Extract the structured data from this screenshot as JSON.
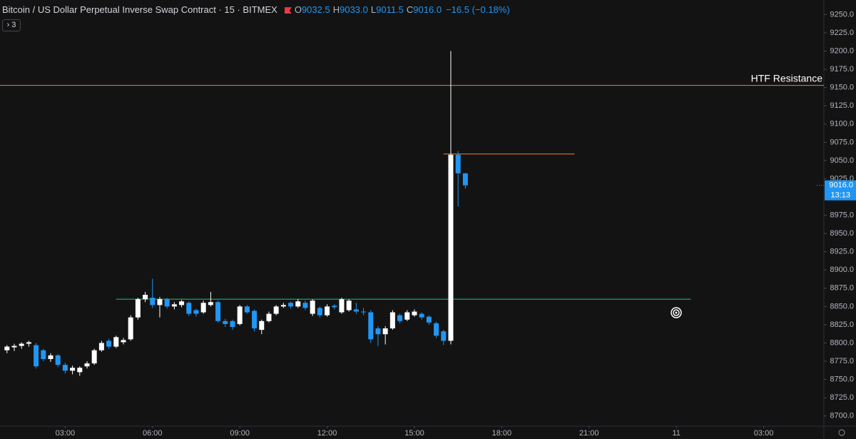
{
  "header": {
    "title": "Bitcoin / US Dollar Perpetual Inverse Swap Contract · 15 · BITMEX",
    "ohlc": [
      {
        "label": "O",
        "value": "9032.5"
      },
      {
        "label": "H",
        "value": "9033.0"
      },
      {
        "label": "L",
        "value": "9011.5"
      },
      {
        "label": "C",
        "value": "9016.0"
      }
    ],
    "change": "−16.5 (−0.18%)",
    "collapse": "› 3"
  },
  "chart_data": {
    "type": "candlestick",
    "x": [
      1,
      1.25,
      1.5,
      1.75,
      2,
      2.25,
      2.5,
      2.75,
      3,
      3.25,
      3.5,
      3.75,
      4,
      4.25,
      4.5,
      4.75,
      5,
      5.25,
      5.5,
      5.75,
      6,
      6.25,
      6.5,
      6.75,
      7,
      7.25,
      7.5,
      7.75,
      8,
      8.25,
      8.5,
      8.75,
      9,
      9.25,
      9.5,
      9.75,
      10,
      10.25,
      10.5,
      10.75,
      11,
      11.25,
      11.5,
      11.75,
      12,
      12.25,
      12.5,
      12.75,
      13,
      13.25,
      13.5,
      13.75,
      14,
      14.25,
      14.5,
      14.75,
      15,
      15.25,
      15.5,
      15.75,
      16,
      16.25,
      16.5,
      16.75
    ],
    "open": [
      8790,
      8794,
      8796,
      8799,
      8797,
      8790,
      8778,
      8783,
      8770,
      8762,
      8760,
      8768,
      8772,
      8790,
      8803,
      8795,
      8801,
      8805,
      8835,
      8860,
      8862,
      8852,
      8860,
      8850,
      8852,
      8855,
      8845,
      8842,
      8852,
      8856,
      8830,
      8830,
      8826,
      8850,
      8844,
      8818,
      8830,
      8840,
      8850,
      8855,
      8850,
      8855,
      8840,
      8848,
      8838,
      8851,
      8842,
      8845,
      8846,
      8843,
      8842,
      8820,
      8812,
      8820,
      8838,
      8832,
      8838,
      8840,
      8836,
      8827,
      8816,
      8803,
      9058,
      9032.5
    ],
    "high": [
      8797,
      8799,
      8801,
      8803,
      8800,
      8792,
      8786,
      8785,
      8773,
      8769,
      8768,
      8775,
      8792,
      8803,
      8806,
      8810,
      8807,
      8838,
      8862,
      8870,
      8888,
      8863,
      8862,
      8856,
      8859,
      8857,
      8847,
      8858,
      8870,
      8858,
      8833,
      8832,
      8852,
      8852,
      8846,
      8832,
      8843,
      8852,
      8855,
      8857,
      8860,
      8858,
      8860,
      8850,
      8853,
      8853,
      8862,
      8860,
      8855,
      8848,
      8845,
      8823,
      8823,
      8845,
      8840,
      8845,
      8846,
      8842,
      8838,
      8829,
      8818,
      9200,
      9063,
      9033
    ],
    "low": [
      8786,
      8789,
      8792,
      8795,
      8765,
      8775,
      8774,
      8767,
      8758,
      8757,
      8755,
      8765,
      8770,
      8788,
      8792,
      8793,
      8798,
      8803,
      8832,
      8856,
      8848,
      8835,
      8847,
      8846,
      8849,
      8837,
      8836,
      8840,
      8850,
      8828,
      8822,
      8818,
      8824,
      8840,
      8816,
      8812,
      8828,
      8838,
      8848,
      8847,
      8848,
      8845,
      8837,
      8835,
      8836,
      8846,
      8840,
      8843,
      8840,
      8838,
      8800,
      8796,
      8798,
      8818,
      8827,
      8830,
      8836,
      8832,
      8825,
      8807,
      8797,
      8798,
      8987,
      9011.5
    ],
    "close": [
      8795,
      8796,
      8799,
      8801,
      8768,
      8778,
      8783,
      8770,
      8762,
      8766,
      8766,
      8772,
      8790,
      8800,
      8795,
      8808,
      8804,
      8835,
      8860,
      8866,
      8852,
      8860,
      8850,
      8853,
      8857,
      8840,
      8840,
      8855,
      8856,
      8830,
      8826,
      8822,
      8850,
      8842,
      8820,
      8830,
      8840,
      8850,
      8852,
      8850,
      8857,
      8848,
      8858,
      8838,
      8850,
      8849,
      8860,
      8858,
      8843,
      8842,
      8805,
      8812,
      8820,
      8842,
      8830,
      8842,
      8843,
      8835,
      8828,
      8810,
      8803,
      9058,
      9032.5,
      9016
    ],
    "up_color": "#ffffff",
    "down_color": "#2196f3",
    "xlim": [
      0.76,
      29.07
    ],
    "ylim": [
      8687,
      9270
    ],
    "xticks": [
      {
        "value": 3,
        "label": "03:00"
      },
      {
        "value": 6,
        "label": "06:00"
      },
      {
        "value": 9,
        "label": "09:00"
      },
      {
        "value": 12,
        "label": "12:00"
      },
      {
        "value": 15,
        "label": "15:00"
      },
      {
        "value": 18,
        "label": "18:00"
      },
      {
        "value": 21,
        "label": "21:00"
      },
      {
        "value": 24,
        "label": "11"
      },
      {
        "value": 27,
        "label": "03:00"
      }
    ],
    "yticks": [
      {
        "value": 8700,
        "label": "8700.0"
      },
      {
        "value": 8725,
        "label": "8725.0"
      },
      {
        "value": 8750,
        "label": "8750.0"
      },
      {
        "value": 8775,
        "label": "8775.0"
      },
      {
        "value": 8800,
        "label": "8800.0"
      },
      {
        "value": 8825,
        "label": "8825.0"
      },
      {
        "value": 8850,
        "label": "8850.0"
      },
      {
        "value": 8875,
        "label": "8875.0"
      },
      {
        "value": 8900,
        "label": "8900.0"
      },
      {
        "value": 8925,
        "label": "8925.0"
      },
      {
        "value": 8950,
        "label": "8950.0"
      },
      {
        "value": 8975,
        "label": "8975.0"
      },
      {
        "value": 9025,
        "label": "9025.0"
      },
      {
        "value": 9050,
        "label": "9050.0"
      },
      {
        "value": 9075,
        "label": "9075.0"
      },
      {
        "value": 9100,
        "label": "9100.0"
      },
      {
        "value": 9125,
        "label": "9125.0"
      },
      {
        "value": 9150,
        "label": "9150.0"
      },
      {
        "value": 9175,
        "label": "9175.0"
      },
      {
        "value": 9200,
        "label": "9200.0"
      },
      {
        "value": 9225,
        "label": "9225.0"
      },
      {
        "value": 9250,
        "label": "9250.0"
      }
    ],
    "grid": false,
    "hlines": [
      {
        "value": 9153,
        "color": "#f57c45",
        "label": "HTF Resistance"
      },
      {
        "value": 9059,
        "color": "#f57c45",
        "from": 16,
        "to": 20.5
      },
      {
        "value": 8860,
        "color": "#26c281",
        "from": 4.75,
        "to": 24.5
      }
    ],
    "last_price": {
      "value": 9016,
      "label": "9016.0"
    },
    "countdown": "13:13"
  }
}
